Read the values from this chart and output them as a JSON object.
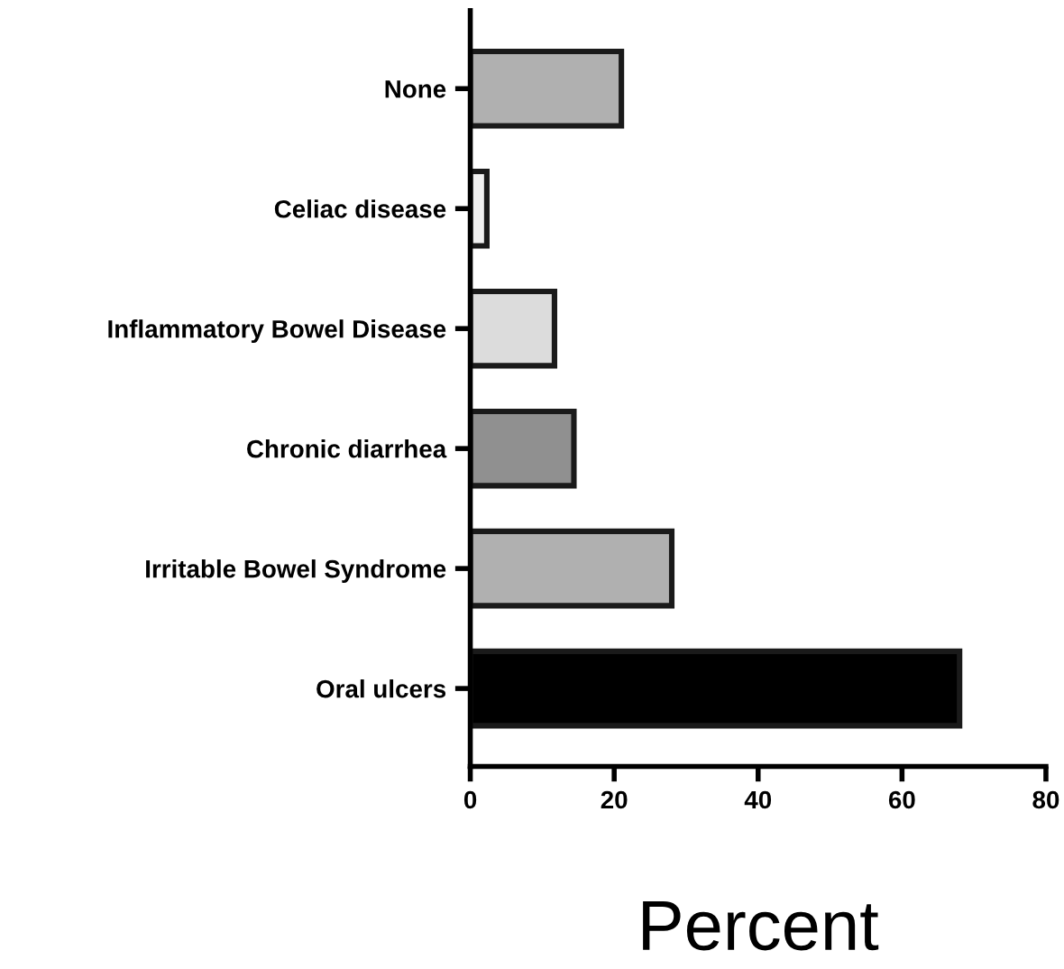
{
  "chart_data": {
    "type": "bar",
    "orientation": "horizontal",
    "xlabel": "Percent",
    "categories": [
      "None",
      "Celiac disease",
      "Inflammatory Bowel Disease",
      "Chronic diarrhea",
      "Irritable Bowel Syndrome",
      "Oral ulcers"
    ],
    "values": [
      21,
      2.3,
      11.7,
      14.4,
      28,
      68
    ],
    "colors": [
      "#b0b0b0",
      "#f0f0f0",
      "#dcdcdc",
      "#909090",
      "#b0b0b0",
      "#000000"
    ],
    "xlim": [
      0,
      80
    ],
    "xticks": [
      0,
      20,
      40,
      60,
      80
    ],
    "grid": false,
    "legend": false
  }
}
